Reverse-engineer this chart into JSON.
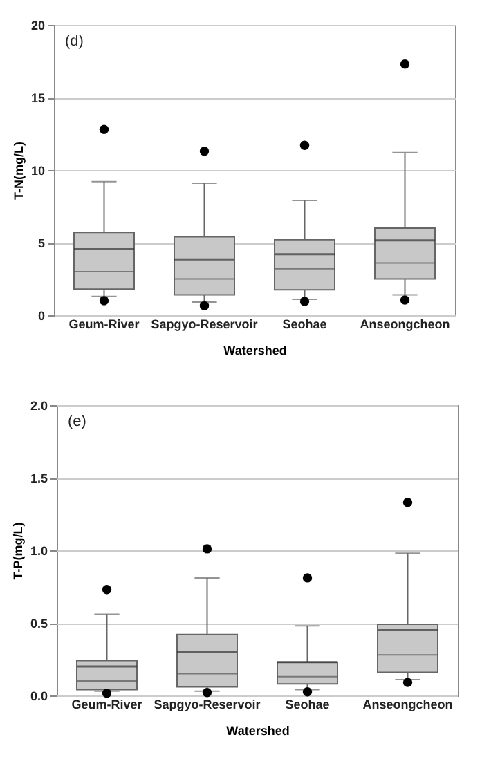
{
  "chart_data": [
    {
      "type": "box",
      "annotations": [
        "(d)"
      ],
      "xlabel": "Watershed",
      "ylabel": "T-N(mg/L)",
      "categories": [
        "Geum-River",
        "Sapgyo-Reservoir",
        "Seohae",
        "Anseongcheon"
      ],
      "ylim": [
        0,
        20
      ],
      "yticks": [
        0,
        5,
        10,
        15,
        20
      ],
      "grid": "y",
      "series": [
        {
          "color": "#c8c8c8",
          "boxes": [
            {
              "low": 1.3,
              "q1": 1.8,
              "median": 3.0,
              "q3": 5.7,
              "high": 9.2,
              "mean": 4.55,
              "outliers": [
                12.8,
                1.0
              ]
            },
            {
              "low": 0.9,
              "q1": 1.4,
              "median": 2.5,
              "q3": 5.4,
              "high": 9.1,
              "mean": 3.85,
              "outliers": [
                11.3,
                0.65
              ]
            },
            {
              "low": 1.1,
              "q1": 1.75,
              "median": 3.2,
              "q3": 5.2,
              "high": 7.9,
              "mean": 4.2,
              "outliers": [
                11.7,
                0.95
              ]
            },
            {
              "low": 1.4,
              "q1": 2.5,
              "median": 3.6,
              "q3": 6.0,
              "high": 11.2,
              "mean": 5.15,
              "outliers": [
                17.3,
                1.05
              ]
            }
          ]
        }
      ]
    },
    {
      "type": "box",
      "annotations": [
        "(e)"
      ],
      "xlabel": "Watershed",
      "ylabel": "T-P(mg/L)",
      "categories": [
        "Geum-River",
        "Sapgyo-Reservoir",
        "Seohae",
        "Anseongcheon"
      ],
      "ylim": [
        0,
        2
      ],
      "yticks": [
        {
          "value": 0,
          "label": "0.0"
        },
        0.5,
        {
          "value": 1,
          "label": "1.0"
        },
        1.5,
        {
          "value": 2,
          "label": "2.0"
        }
      ],
      "grid": "y",
      "series": [
        {
          "color": "#c8c8c8",
          "boxes": [
            {
              "low": 0.03,
              "q1": 0.04,
              "median": 0.1,
              "q3": 0.24,
              "high": 0.56,
              "mean": 0.2,
              "outliers": [
                0.73,
                0.015
              ]
            },
            {
              "low": 0.03,
              "q1": 0.06,
              "median": 0.15,
              "q3": 0.42,
              "high": 0.81,
              "mean": 0.3,
              "outliers": [
                1.01,
                0.02
              ]
            },
            {
              "low": 0.04,
              "q1": 0.08,
              "median": 0.13,
              "q3": 0.23,
              "high": 0.48,
              "mean": 0.23,
              "outliers": [
                0.81,
                0.025
              ]
            },
            {
              "low": 0.11,
              "q1": 0.16,
              "median": 0.28,
              "q3": 0.49,
              "high": 0.98,
              "mean": 0.45,
              "outliers": [
                1.33,
                0.09
              ]
            }
          ]
        }
      ]
    }
  ]
}
